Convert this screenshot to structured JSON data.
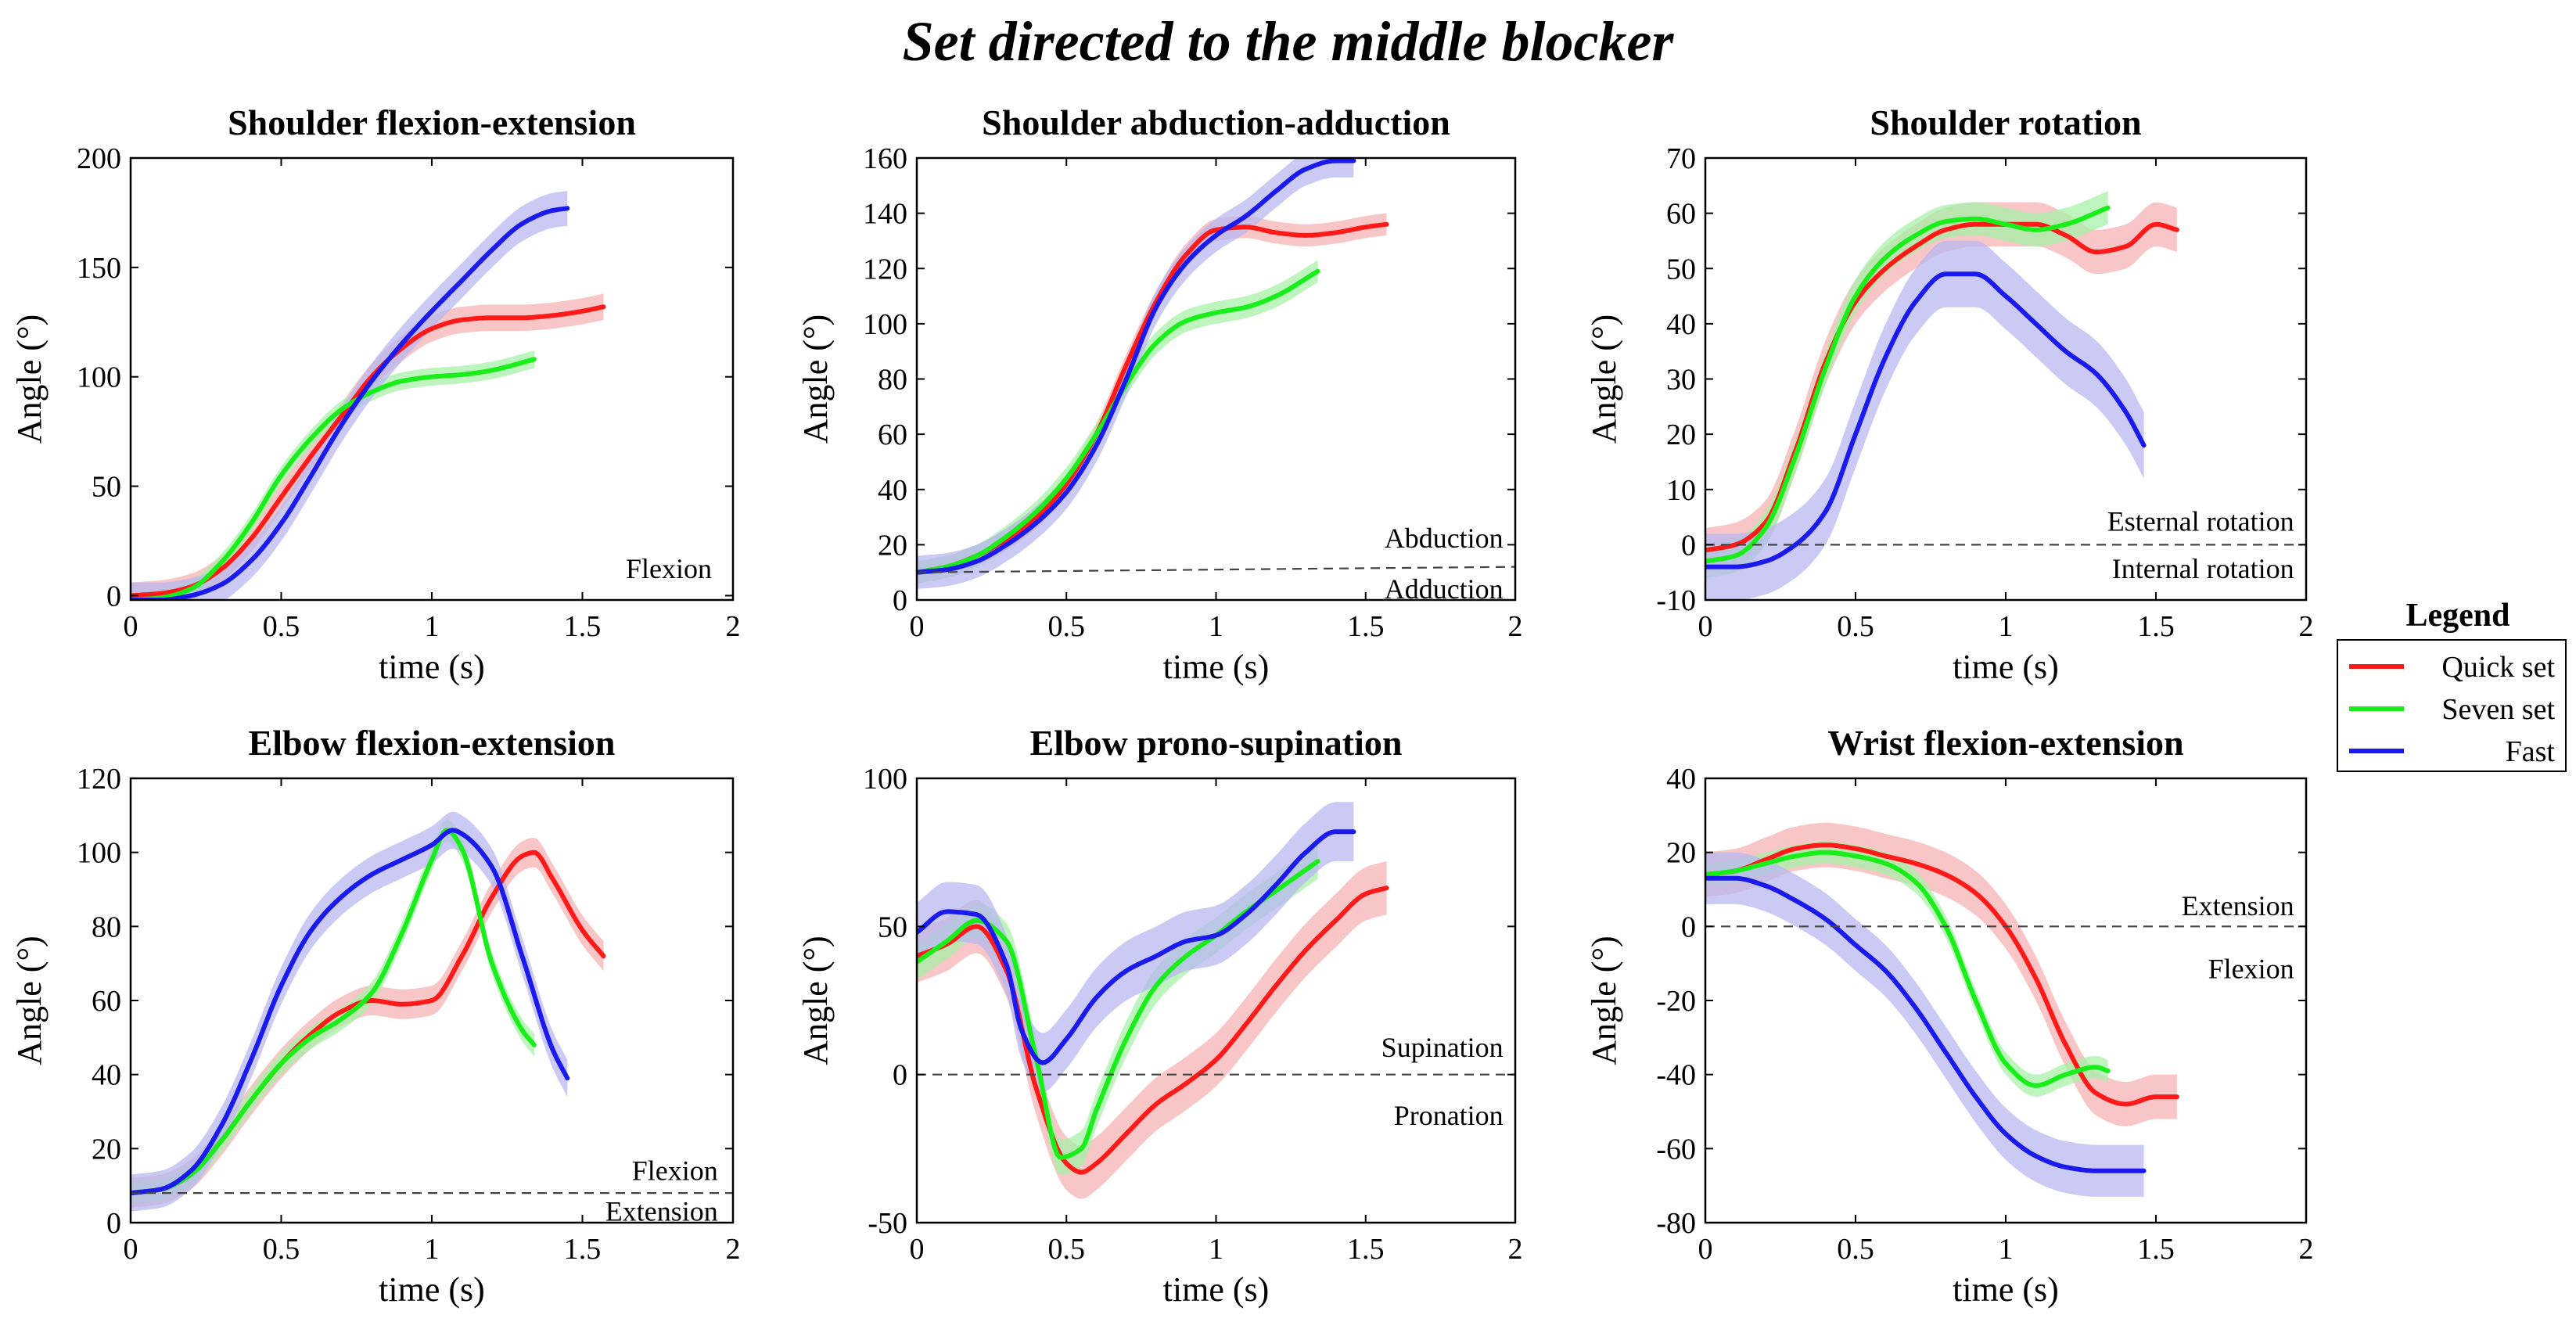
{
  "title": "Set directed to the middle blocker",
  "legend": {
    "title": "Legend",
    "entries": [
      {
        "name": "Quick set",
        "color": "#ff1a1a"
      },
      {
        "name": "Seven set",
        "color": "#1aee1a"
      },
      {
        "name": "Fast",
        "color": "#1a1aee"
      }
    ]
  },
  "band_colors": {
    "Quick set": "#f5b3b3",
    "Seven set": "#a8f0a8",
    "Fast": "#b8b8f0"
  },
  "chart_data": [
    {
      "type": "line",
      "title": "Shoulder flexion-extension",
      "xlabel": "time (s)",
      "ylabel": "Angle (°)",
      "xlim": [
        0,
        2
      ],
      "ylim": [
        -2,
        200
      ],
      "xticks": [
        0,
        0.5,
        1,
        1.5,
        2
      ],
      "xtick_labels": [
        "0",
        "0.5",
        "1",
        "1.5",
        "2"
      ],
      "yticks": [
        0,
        50,
        100,
        150,
        200
      ],
      "ytick_labels": [
        "0",
        "50",
        "100",
        "150",
        "200"
      ],
      "reference_line": null,
      "annotations": [
        {
          "text": "Flexion",
          "x": 1.93,
          "y": 8,
          "anchor": "end"
        }
      ],
      "series": [
        {
          "name": "Quick set",
          "band": 6,
          "x": [
            0,
            0.1,
            0.2,
            0.3,
            0.4,
            0.5,
            0.6,
            0.7,
            0.8,
            0.9,
            1.0,
            1.1,
            1.2,
            1.3,
            1.4,
            1.5,
            1.57
          ],
          "y": [
            0,
            1,
            4,
            12,
            26,
            45,
            64,
            82,
            100,
            113,
            122,
            126,
            127,
            127,
            128,
            130,
            132
          ]
        },
        {
          "name": "Seven set",
          "band": 4,
          "x": [
            0,
            0.1,
            0.2,
            0.3,
            0.4,
            0.5,
            0.6,
            0.7,
            0.8,
            0.9,
            1.0,
            1.1,
            1.2,
            1.34
          ],
          "y": [
            -2,
            -1,
            3,
            15,
            33,
            55,
            72,
            85,
            93,
            98,
            100,
            101,
            103,
            108
          ]
        },
        {
          "name": "Fast",
          "band": 8,
          "x": [
            0,
            0.1,
            0.2,
            0.3,
            0.4,
            0.5,
            0.6,
            0.7,
            0.8,
            0.9,
            1.0,
            1.1,
            1.2,
            1.3,
            1.4,
            1.45
          ],
          "y": [
            -2,
            -2,
            0,
            5,
            16,
            33,
            55,
            78,
            98,
            115,
            130,
            144,
            158,
            170,
            176,
            177
          ]
        }
      ]
    },
    {
      "type": "line",
      "title": "Shoulder abduction-adduction",
      "xlabel": "time (s)",
      "ylabel": "Angle (°)",
      "xlim": [
        0,
        2
      ],
      "ylim": [
        0,
        160
      ],
      "xticks": [
        0,
        0.5,
        1,
        1.5,
        2
      ],
      "xtick_labels": [
        "0",
        "0.5",
        "1",
        "1.5",
        "2"
      ],
      "yticks": [
        0,
        20,
        40,
        60,
        80,
        100,
        120,
        140,
        160
      ],
      "ytick_labels": [
        "0",
        "20",
        "40",
        "60",
        "80",
        "100",
        "120",
        "140",
        "160"
      ],
      "reference_line": {
        "x": [
          0,
          2
        ],
        "y": [
          10,
          12
        ]
      },
      "annotations": [
        {
          "text": "Abduction",
          "x": 1.96,
          "y": 19,
          "anchor": "end"
        },
        {
          "text": "Adduction",
          "x": 1.96,
          "y": 0.5,
          "anchor": "end"
        }
      ],
      "series": [
        {
          "name": "Quick set",
          "band": 4,
          "x": [
            0,
            0.1,
            0.2,
            0.3,
            0.4,
            0.5,
            0.6,
            0.7,
            0.8,
            0.9,
            1.0,
            1.1,
            1.2,
            1.3,
            1.4,
            1.5,
            1.57
          ],
          "y": [
            10,
            12,
            16,
            22,
            30,
            42,
            60,
            85,
            108,
            125,
            134,
            135,
            133,
            132,
            133,
            135,
            136
          ]
        },
        {
          "name": "Seven set",
          "band": 4,
          "x": [
            0,
            0.1,
            0.2,
            0.3,
            0.4,
            0.5,
            0.6,
            0.7,
            0.8,
            0.9,
            1.0,
            1.1,
            1.2,
            1.34
          ],
          "y": [
            10,
            12,
            16,
            23,
            32,
            44,
            60,
            78,
            93,
            101,
            104,
            106,
            110,
            119
          ]
        },
        {
          "name": "Fast",
          "band": 6,
          "x": [
            0,
            0.1,
            0.2,
            0.3,
            0.4,
            0.5,
            0.6,
            0.7,
            0.8,
            0.9,
            1.0,
            1.1,
            1.2,
            1.3,
            1.4,
            1.46
          ],
          "y": [
            10,
            11,
            14,
            20,
            28,
            39,
            56,
            80,
            106,
            122,
            132,
            139,
            148,
            156,
            159,
            159
          ]
        }
      ]
    },
    {
      "type": "line",
      "title": "Shoulder rotation",
      "xlabel": "time (s)",
      "ylabel": "Angle (°)",
      "xlim": [
        0,
        2
      ],
      "ylim": [
        -10,
        70
      ],
      "xticks": [
        0,
        0.5,
        1,
        1.5,
        2
      ],
      "xtick_labels": [
        "0",
        "0.5",
        "1",
        "1.5",
        "2"
      ],
      "yticks": [
        -10,
        0,
        10,
        20,
        30,
        40,
        50,
        60,
        70
      ],
      "ytick_labels": [
        "-10",
        "0",
        "10",
        "20",
        "30",
        "40",
        "50",
        "60",
        "70"
      ],
      "reference_line": {
        "x": [
          0,
          2
        ],
        "y": [
          0,
          0
        ]
      },
      "annotations": [
        {
          "text": "Esternal rotation",
          "x": 1.96,
          "y": 2.5,
          "anchor": "end"
        },
        {
          "text": "Internal rotation",
          "x": 1.96,
          "y": -6,
          "anchor": "end"
        }
      ],
      "series": [
        {
          "name": "Quick set",
          "band": 4,
          "x": [
            0,
            0.1,
            0.2,
            0.3,
            0.4,
            0.5,
            0.6,
            0.7,
            0.8,
            0.9,
            1.0,
            1.1,
            1.2,
            1.3,
            1.4,
            1.5,
            1.57
          ],
          "y": [
            -1,
            0,
            4,
            17,
            33,
            44,
            50,
            54,
            57,
            58,
            58,
            58,
            56,
            53,
            54,
            58,
            57
          ]
        },
        {
          "name": "Seven set",
          "band": 3,
          "x": [
            0,
            0.1,
            0.2,
            0.3,
            0.4,
            0.5,
            0.6,
            0.7,
            0.8,
            0.9,
            1.0,
            1.1,
            1.2,
            1.34
          ],
          "y": [
            -3,
            -2,
            3,
            16,
            32,
            45,
            52,
            56,
            58.5,
            59,
            58,
            57,
            58,
            61
          ]
        },
        {
          "name": "Fast",
          "band": 6,
          "x": [
            0,
            0.1,
            0.2,
            0.3,
            0.4,
            0.5,
            0.6,
            0.7,
            0.8,
            0.9,
            1.0,
            1.1,
            1.2,
            1.3,
            1.4,
            1.46
          ],
          "y": [
            -4,
            -4,
            -3,
            0,
            6,
            20,
            34,
            44,
            49,
            49,
            45,
            40,
            35,
            31,
            24,
            18
          ]
        }
      ]
    },
    {
      "type": "line",
      "title": "Elbow flexion-extension",
      "xlabel": "time (s)",
      "ylabel": "Angle (°)",
      "xlim": [
        0,
        2
      ],
      "ylim": [
        0,
        120
      ],
      "xticks": [
        0,
        0.5,
        1,
        1.5,
        2
      ],
      "xtick_labels": [
        "0",
        "0.5",
        "1",
        "1.5",
        "2"
      ],
      "yticks": [
        0,
        20,
        40,
        60,
        80,
        100,
        120
      ],
      "ytick_labels": [
        "0",
        "20",
        "40",
        "60",
        "80",
        "100",
        "120"
      ],
      "reference_line": {
        "x": [
          0,
          2
        ],
        "y": [
          8,
          8
        ]
      },
      "annotations": [
        {
          "text": "Flexion",
          "x": 1.95,
          "y": 11.5,
          "anchor": "end"
        },
        {
          "text": "Extension",
          "x": 1.95,
          "y": 0.5,
          "anchor": "end"
        }
      ],
      "series": [
        {
          "name": "Quick set",
          "band": 4,
          "x": [
            0,
            0.1,
            0.2,
            0.3,
            0.4,
            0.5,
            0.6,
            0.7,
            0.8,
            0.9,
            1.0,
            1.1,
            1.2,
            1.3,
            1.34,
            1.4,
            1.5,
            1.57
          ],
          "y": [
            8,
            9,
            13,
            22,
            33,
            43,
            51,
            57,
            60,
            59,
            60,
            72,
            88,
            99,
            100,
            93,
            79,
            72
          ]
        },
        {
          "name": "Seven set",
          "band": 3,
          "x": [
            0,
            0.1,
            0.2,
            0.3,
            0.4,
            0.5,
            0.6,
            0.7,
            0.8,
            0.9,
            1.0,
            1.05,
            1.1,
            1.2,
            1.3,
            1.34
          ],
          "y": [
            8,
            9,
            13,
            22,
            33,
            43,
            50,
            55,
            62,
            78,
            98,
            106,
            101,
            70,
            52,
            48
          ]
        },
        {
          "name": "Fast",
          "band": 5,
          "x": [
            0,
            0.1,
            0.2,
            0.3,
            0.4,
            0.5,
            0.6,
            0.7,
            0.8,
            0.9,
            1.0,
            1.07,
            1.1,
            1.2,
            1.3,
            1.4,
            1.45
          ],
          "y": [
            8,
            9,
            14,
            26,
            44,
            64,
            79,
            88,
            94,
            98,
            102,
            106,
            105,
            96,
            72,
            47,
            39
          ]
        }
      ]
    },
    {
      "type": "line",
      "title": "Elbow prono-supination",
      "xlabel": "time (s)",
      "ylabel": "Angle (°)",
      "xlim": [
        0,
        2
      ],
      "ylim": [
        -50,
        100
      ],
      "xticks": [
        0,
        0.5,
        1,
        1.5,
        2
      ],
      "xtick_labels": [
        "0",
        "0.5",
        "1",
        "1.5",
        "2"
      ],
      "yticks": [
        -50,
        0,
        50,
        100
      ],
      "ytick_labels": [
        "-50",
        "0",
        "50",
        "100"
      ],
      "reference_line": {
        "x": [
          0,
          2
        ],
        "y": [
          0,
          0
        ]
      },
      "annotations": [
        {
          "text": "Supination",
          "x": 1.96,
          "y": 6,
          "anchor": "end"
        },
        {
          "text": "Pronation",
          "x": 1.96,
          "y": -17,
          "anchor": "end"
        }
      ],
      "series": [
        {
          "name": "Quick set",
          "band": 9,
          "x": [
            0,
            0.1,
            0.2,
            0.3,
            0.4,
            0.5,
            0.55,
            0.6,
            0.7,
            0.8,
            0.9,
            1.0,
            1.1,
            1.2,
            1.3,
            1.4,
            1.5,
            1.57
          ],
          "y": [
            40,
            44,
            50,
            35,
            -5,
            -30,
            -33,
            -30,
            -20,
            -10,
            -3,
            5,
            17,
            30,
            42,
            52,
            61,
            63
          ]
        },
        {
          "name": "Seven set",
          "band": 6,
          "x": [
            0,
            0.1,
            0.2,
            0.3,
            0.4,
            0.48,
            0.55,
            0.6,
            0.7,
            0.8,
            0.9,
            1.0,
            1.1,
            1.2,
            1.34
          ],
          "y": [
            38,
            45,
            52,
            45,
            5,
            -28,
            -25,
            -12,
            12,
            30,
            40,
            47,
            55,
            62,
            72
          ]
        },
        {
          "name": "Fast",
          "band": 10,
          "x": [
            0,
            0.1,
            0.2,
            0.3,
            0.35,
            0.42,
            0.5,
            0.6,
            0.7,
            0.8,
            0.9,
            1.0,
            1.1,
            1.2,
            1.3,
            1.4,
            1.46
          ],
          "y": [
            48,
            55,
            54,
            37,
            15,
            4,
            12,
            26,
            35,
            40,
            45,
            47,
            54,
            64,
            75,
            82,
            82
          ]
        }
      ]
    },
    {
      "type": "line",
      "title": "Wrist flexion-extension",
      "xlabel": "time (s)",
      "ylabel": "Angle (°)",
      "xlim": [
        0,
        2
      ],
      "ylim": [
        -80,
        40
      ],
      "xticks": [
        0,
        0.5,
        1,
        1.5,
        2
      ],
      "xtick_labels": [
        "0",
        "0.5",
        "1",
        "1.5",
        "2"
      ],
      "yticks": [
        -80,
        -60,
        -40,
        -20,
        0,
        20,
        40
      ],
      "ytick_labels": [
        "-80",
        "-60",
        "-40",
        "-20",
        "0",
        "20",
        "40"
      ],
      "reference_line": {
        "x": [
          0,
          2
        ],
        "y": [
          0,
          0
        ]
      },
      "annotations": [
        {
          "text": "Extension",
          "x": 1.96,
          "y": 3,
          "anchor": "end"
        },
        {
          "text": "Flexion",
          "x": 1.96,
          "y": -14,
          "anchor": "end"
        }
      ],
      "series": [
        {
          "name": "Quick set",
          "band": 6,
          "x": [
            0,
            0.1,
            0.2,
            0.3,
            0.4,
            0.5,
            0.6,
            0.7,
            0.8,
            0.9,
            1.0,
            1.1,
            1.2,
            1.3,
            1.4,
            1.5,
            1.57
          ],
          "y": [
            14,
            15,
            18,
            21,
            22,
            21,
            19,
            17,
            14,
            9,
            0,
            -14,
            -32,
            -45,
            -48,
            -46,
            -46
          ]
        },
        {
          "name": "Seven set",
          "band": 3,
          "x": [
            0,
            0.1,
            0.2,
            0.3,
            0.4,
            0.5,
            0.6,
            0.7,
            0.8,
            0.9,
            1.0,
            1.1,
            1.2,
            1.3,
            1.34
          ],
          "y": [
            14,
            15,
            17,
            19,
            20,
            19,
            17,
            12,
            0,
            -20,
            -37,
            -43,
            -40,
            -38,
            -39
          ]
        },
        {
          "name": "Fast",
          "band": 7,
          "x": [
            0,
            0.1,
            0.2,
            0.3,
            0.4,
            0.5,
            0.6,
            0.7,
            0.8,
            0.9,
            1.0,
            1.1,
            1.2,
            1.3,
            1.4,
            1.46
          ],
          "y": [
            13,
            13,
            11,
            7,
            2,
            -5,
            -12,
            -22,
            -34,
            -46,
            -56,
            -62,
            -65,
            -66,
            -66,
            -66
          ]
        }
      ]
    }
  ]
}
